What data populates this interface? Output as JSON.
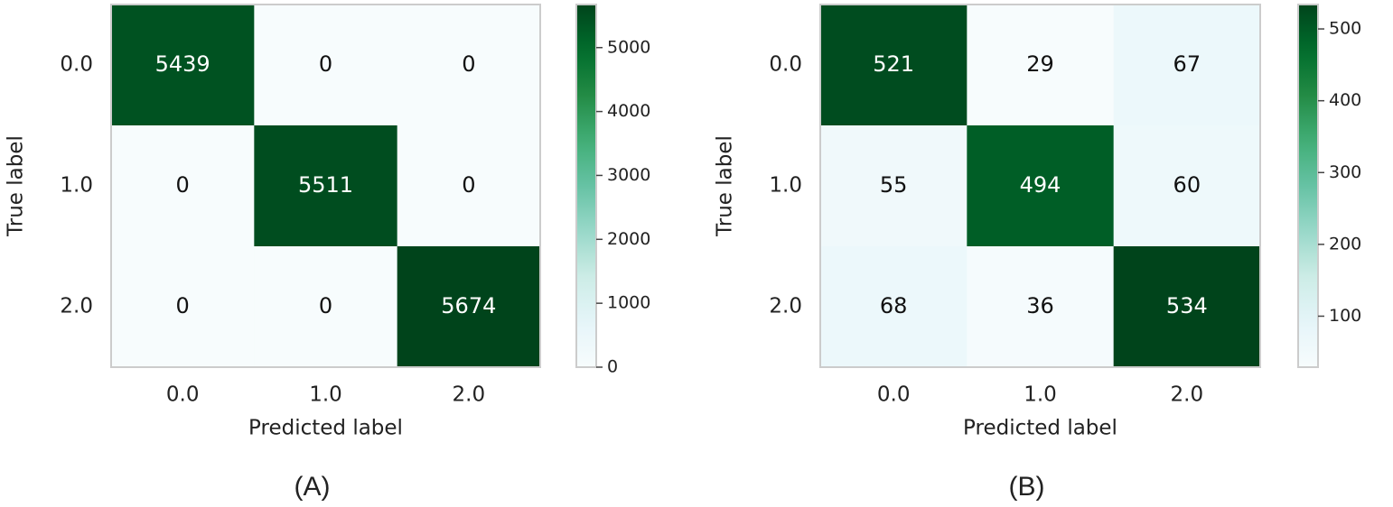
{
  "chart_data": [
    {
      "type": "heatmap",
      "caption": "(A)",
      "xlabel": "Predicted label",
      "ylabel": "True label",
      "x": [
        "0.0",
        "1.0",
        "2.0"
      ],
      "y": [
        "0.0",
        "1.0",
        "2.0"
      ],
      "values": [
        [
          5439,
          0,
          0
        ],
        [
          0,
          5511,
          0
        ],
        [
          0,
          0,
          5674
        ]
      ],
      "clim": [
        0,
        5674
      ],
      "cticks": [
        0,
        1000,
        2000,
        3000,
        4000,
        5000
      ],
      "colormap": "BuGn"
    },
    {
      "type": "heatmap",
      "caption": "(B)",
      "xlabel": "Predicted label",
      "ylabel": "True label",
      "x": [
        "0.0",
        "1.0",
        "2.0"
      ],
      "y": [
        "0.0",
        "1.0",
        "2.0"
      ],
      "values": [
        [
          521,
          29,
          67
        ],
        [
          55,
          494,
          60
        ],
        [
          68,
          36,
          534
        ]
      ],
      "clim": [
        29,
        534
      ],
      "cticks": [
        100,
        200,
        300,
        400,
        500
      ],
      "colormap": "BuGn"
    }
  ]
}
